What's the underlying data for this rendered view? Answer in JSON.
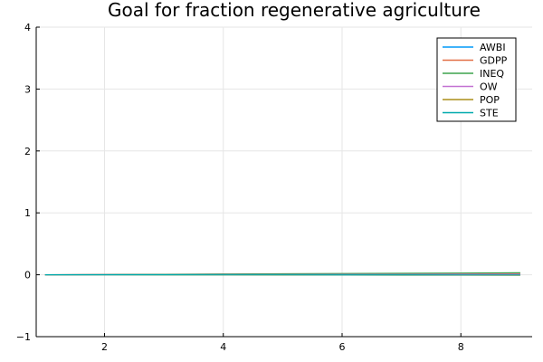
{
  "chart_data": {
    "type": "line",
    "title": "Goal for fraction regenerative agriculture",
    "xlabel": "",
    "ylabel": "",
    "xlim": [
      0.85,
      9.2
    ],
    "ylim": [
      -1,
      4
    ],
    "xticks": [
      2,
      4,
      6,
      8
    ],
    "yticks": [
      -1,
      0,
      1,
      2,
      3,
      4
    ],
    "grid": true,
    "legend_position": "top-right",
    "x": [
      1,
      2,
      3,
      4,
      5,
      6,
      7,
      8,
      9
    ],
    "series": [
      {
        "name": "AWBI",
        "color": "#009af9",
        "values": [
          0,
          0.002,
          0.004,
          0.006,
          0.008,
          0.01,
          0.012,
          0.014,
          0.016
        ]
      },
      {
        "name": "GDPP",
        "color": "#e26f46",
        "values": [
          0,
          0.003,
          0.006,
          0.009,
          0.012,
          0.015,
          0.018,
          0.021,
          0.024
        ]
      },
      {
        "name": "INEQ",
        "color": "#3da44d",
        "values": [
          0,
          0.004,
          0.008,
          0.012,
          0.016,
          0.02,
          0.024,
          0.028,
          0.032
        ]
      },
      {
        "name": "OW",
        "color": "#c271d2",
        "values": [
          0,
          0.001,
          0.002,
          0.003,
          0.004,
          0.005,
          0.006,
          0.007,
          0.008
        ]
      },
      {
        "name": "POP",
        "color": "#ac8e18",
        "values": [
          0,
          -0.001,
          -0.002,
          -0.003,
          -0.004,
          -0.005,
          -0.006,
          -0.007,
          -0.008
        ]
      },
      {
        "name": "STE",
        "color": "#00a9ad",
        "values": [
          0,
          0.0,
          0.0,
          -0.001,
          -0.001,
          -0.002,
          -0.002,
          -0.003,
          -0.003
        ]
      }
    ]
  }
}
